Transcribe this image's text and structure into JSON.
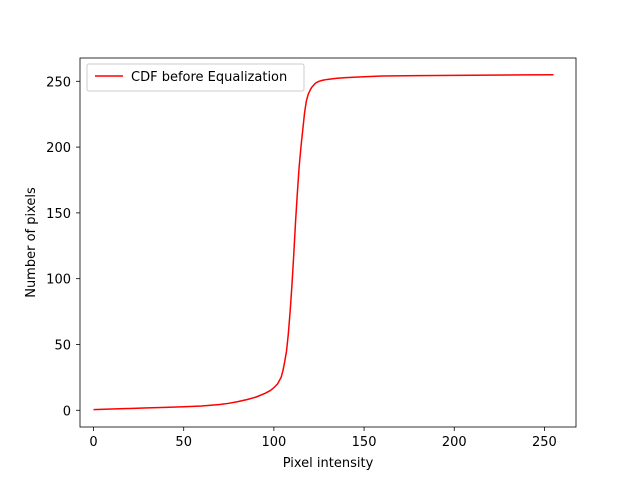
{
  "chart_data": {
    "type": "line",
    "title": "",
    "xlabel": "Pixel intensity",
    "ylabel": "Number of pixels",
    "xlim": [
      -7.5,
      267.5
    ],
    "ylim": [
      -12.7,
      267.7
    ],
    "xticks": [
      0,
      50,
      100,
      150,
      200,
      250
    ],
    "yticks": [
      0,
      50,
      100,
      150,
      200,
      250
    ],
    "grid": false,
    "legend": "upper left",
    "series": [
      {
        "name": "CDF before Equalization",
        "color": "#ff0000",
        "x": [
          0,
          10,
          20,
          30,
          40,
          50,
          60,
          70,
          75,
          80,
          85,
          90,
          95,
          98,
          100,
          102,
          104,
          105,
          106,
          107,
          108,
          109,
          110,
          111,
          112,
          113,
          114,
          115,
          116,
          117,
          118,
          119,
          120,
          121,
          122,
          123,
          124,
          125,
          127,
          130,
          135,
          140,
          150,
          160,
          180,
          200,
          220,
          240,
          255
        ],
        "y": [
          0.5,
          1.0,
          1.4,
          1.8,
          2.2,
          2.7,
          3.3,
          4.4,
          5.3,
          6.6,
          8.1,
          10.0,
          12.8,
          15.0,
          17.2,
          20.0,
          25.0,
          30.0,
          37.0,
          45.0,
          58.0,
          75.0,
          95.0,
          118.0,
          143.0,
          165.0,
          185.0,
          200.0,
          213.0,
          226.0,
          235.0,
          240.0,
          243.0,
          245.5,
          247.0,
          248.5,
          249.3,
          250.0,
          250.8,
          251.5,
          252.3,
          252.8,
          253.5,
          254.0,
          254.3,
          254.5,
          254.7,
          254.9,
          255.0
        ]
      }
    ]
  }
}
